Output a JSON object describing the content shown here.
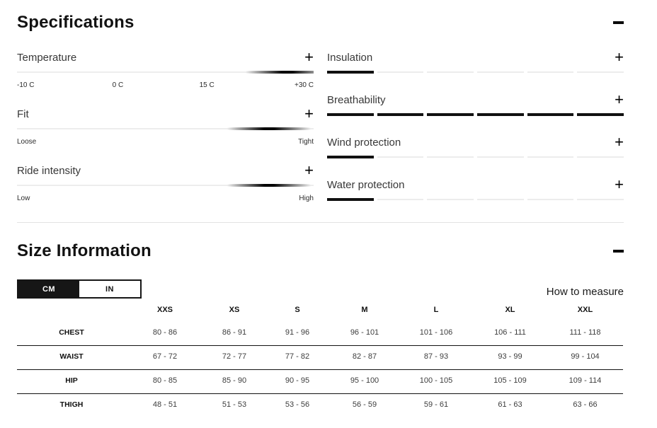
{
  "specifications": {
    "title": "Specifications",
    "expand_symbol": "+",
    "sliders": [
      {
        "label": "Temperature",
        "value_percent": 91,
        "scale": [
          "-10 C",
          "0 C",
          "15 C",
          "+30 C"
        ],
        "scale_positions": [
          0,
          34,
          64,
          100
        ]
      },
      {
        "label": "Fit",
        "value_percent": 85,
        "scale": [
          "Loose",
          "Tight"
        ],
        "scale_positions": [
          0,
          100
        ]
      },
      {
        "label": "Ride intensity",
        "value_percent": 85,
        "scale": [
          "Low",
          "High"
        ],
        "scale_positions": [
          0,
          100
        ]
      }
    ],
    "ratings": [
      {
        "label": "Insulation",
        "filled": 1,
        "total": 6
      },
      {
        "label": "Breathability",
        "filled": 6,
        "total": 6
      },
      {
        "label": "Wind protection",
        "filled": 1,
        "total": 6
      },
      {
        "label": "Water protection",
        "filled": 1,
        "total": 6
      }
    ]
  },
  "size_information": {
    "title": "Size Information",
    "unit_toggle": {
      "options": [
        "CM",
        "IN"
      ],
      "selected": "CM"
    },
    "how_to_measure_label": "How to measure",
    "table": {
      "columns": [
        "XXS",
        "XS",
        "S",
        "M",
        "L",
        "XL",
        "XXL"
      ],
      "rows": [
        {
          "label": "CHEST",
          "values": [
            "80 - 86",
            "86 - 91",
            "91 - 96",
            "96 - 101",
            "101 - 106",
            "106 - 111",
            "111 - 118"
          ]
        },
        {
          "label": "WAIST",
          "values": [
            "67 - 72",
            "72 - 77",
            "77 - 82",
            "82 - 87",
            "87 - 93",
            "93 - 99",
            "99 - 104"
          ]
        },
        {
          "label": "HIP",
          "values": [
            "80 - 85",
            "85 - 90",
            "90 - 95",
            "95 - 100",
            "100 - 105",
            "105 - 109",
            "109 - 114"
          ]
        },
        {
          "label": "THIGH",
          "values": [
            "48 - 51",
            "51 - 53",
            "53 - 56",
            "56 - 59",
            "59 - 61",
            "61 - 63",
            "63 - 66"
          ]
        }
      ]
    }
  },
  "colors": {
    "accent": "#111111",
    "segment_off": "#ececec",
    "divider": "#e2e2e2",
    "toggle_selected_bg": "#161616",
    "toggle_selected_text": "#ffffff"
  }
}
